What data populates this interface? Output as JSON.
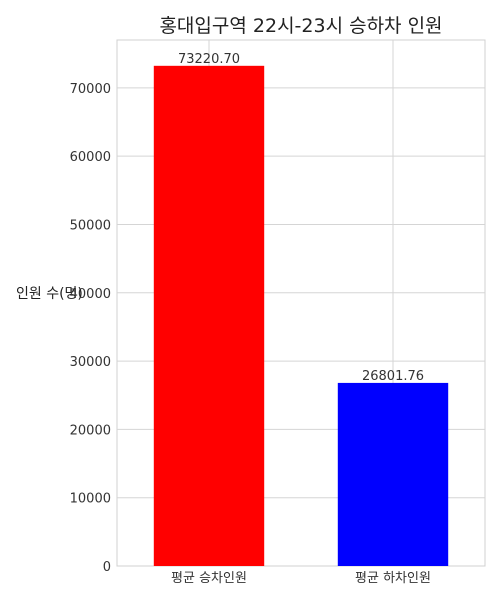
{
  "chart_data": {
    "type": "bar",
    "title": "홍대입구역 22시-23시 승하차 인원",
    "xlabel": "",
    "ylabel": "인원 수(명)",
    "categories": [
      "평균 승차인원",
      "평균 하차인원"
    ],
    "values": [
      73220.7,
      26801.76
    ],
    "data_labels": [
      "73220.70",
      "26801.76"
    ],
    "colors": [
      "#ff0000",
      "#0000ff"
    ],
    "ylim": [
      0,
      77000
    ],
    "yticks": [
      0,
      10000,
      20000,
      30000,
      40000,
      50000,
      60000,
      70000
    ],
    "grid": true,
    "legend": "none"
  }
}
